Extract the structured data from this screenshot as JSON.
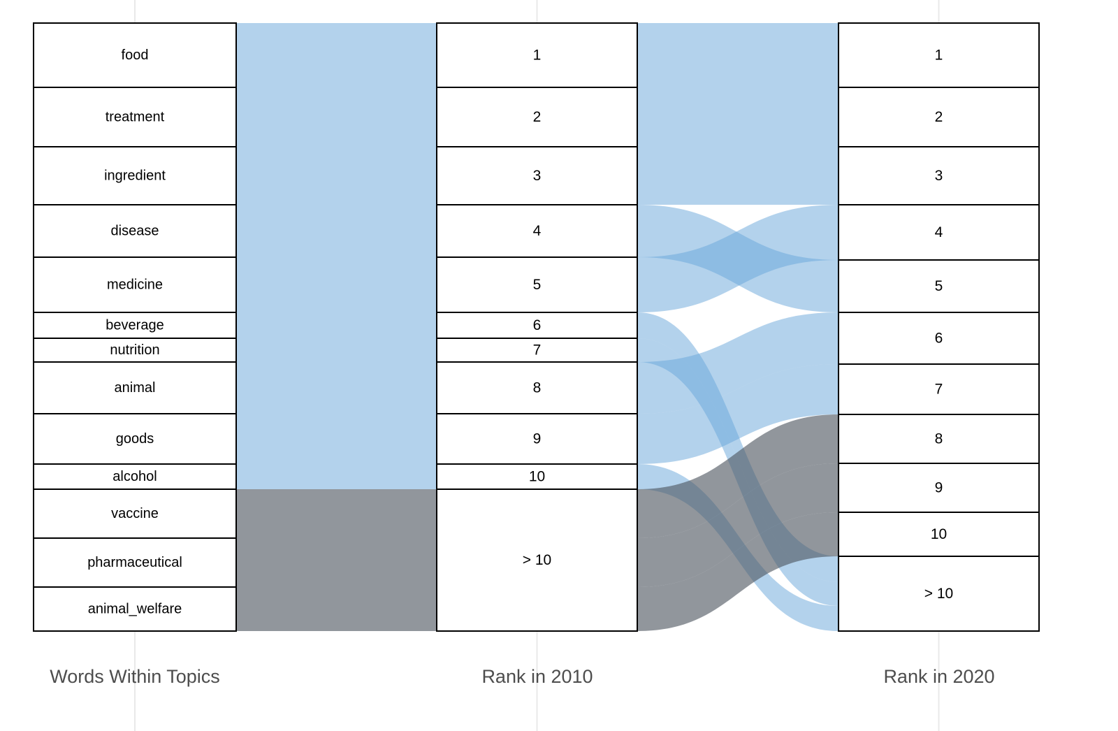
{
  "axis_labels": {
    "words": "Words Within Topics",
    "rank2010": "Rank in 2010",
    "rank2020": "Rank in 2020"
  },
  "colors": {
    "flow_blue": "#67a5d9",
    "flow_gray": "#4d5560",
    "blue_opacity": 0.5,
    "gray_opacity": 0.62,
    "box_fill": "#ffffff",
    "box_border": "#000000",
    "text_color": "#000000",
    "axis_label_color": "#4d4d4d",
    "gridline_color": "#e9e9e9"
  },
  "chart_data": {
    "type": "alluvial",
    "columns": [
      "Words Within Topics",
      "Rank in 2010",
      "Rank in 2020"
    ],
    "rank_labels": [
      "1",
      "2",
      "3",
      "4",
      "5",
      "6",
      "7",
      "8",
      "9",
      "10",
      "> 10"
    ],
    "flows": [
      {
        "word": "food",
        "rank_2010": "1",
        "rank_2020": "1",
        "size": 92,
        "color_group": "blue"
      },
      {
        "word": "treatment",
        "rank_2010": "2",
        "rank_2020": "2",
        "size": 85,
        "color_group": "blue"
      },
      {
        "word": "ingredient",
        "rank_2010": "3",
        "rank_2020": "3",
        "size": 83,
        "color_group": "blue"
      },
      {
        "word": "disease",
        "rank_2010": "4",
        "rank_2020": "5",
        "size": 75,
        "color_group": "blue"
      },
      {
        "word": "medicine",
        "rank_2010": "5",
        "rank_2020": "4",
        "size": 79,
        "color_group": "blue"
      },
      {
        "word": "beverage",
        "rank_2010": "6",
        "rank_2020": "> 10",
        "size": 37,
        "color_group": "blue"
      },
      {
        "word": "nutrition",
        "rank_2010": "7",
        "rank_2020": "> 10",
        "size": 34,
        "color_group": "blue"
      },
      {
        "word": "animal",
        "rank_2010": "8",
        "rank_2020": "6",
        "size": 74,
        "color_group": "blue"
      },
      {
        "word": "goods",
        "rank_2010": "9",
        "rank_2020": "7",
        "size": 72,
        "color_group": "blue"
      },
      {
        "word": "alcohol",
        "rank_2010": "10",
        "rank_2020": "> 10",
        "size": 36,
        "color_group": "blue"
      },
      {
        "word": "vaccine",
        "rank_2010": "> 10",
        "rank_2020": "8",
        "size": 70,
        "color_group": "gray"
      },
      {
        "word": "pharmaceutical",
        "rank_2010": "> 10",
        "rank_2020": "9",
        "size": 70,
        "color_group": "gray"
      },
      {
        "word": "animal_welfare",
        "rank_2010": "> 10",
        "rank_2020": "10",
        "size": 63,
        "color_group": "gray"
      }
    ]
  }
}
